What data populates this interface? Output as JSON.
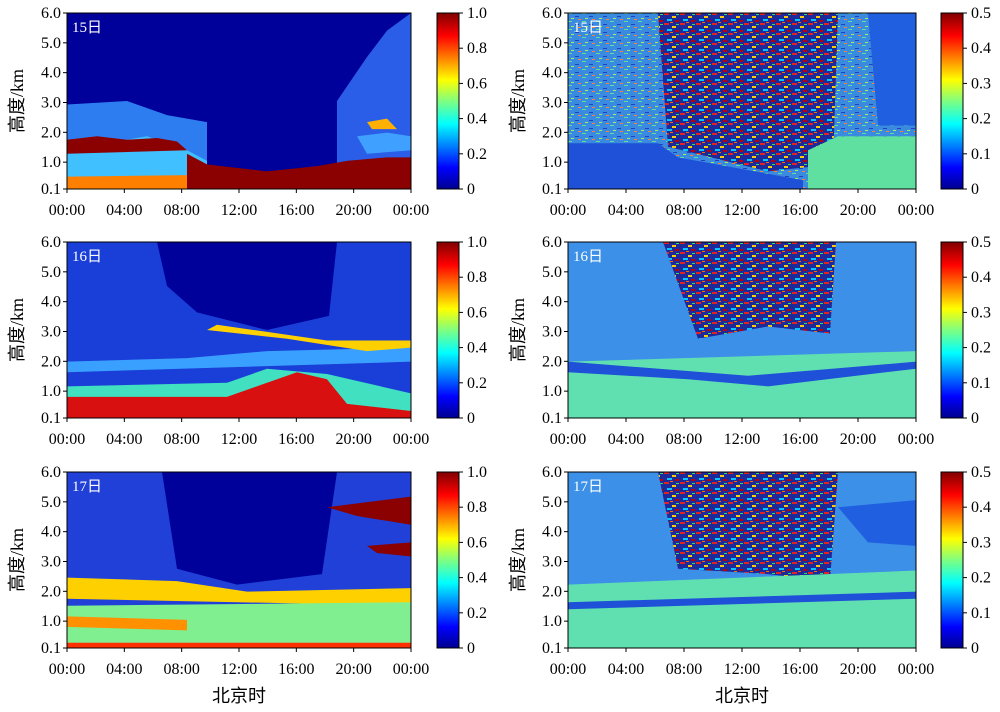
{
  "chart_data": [
    {
      "type": "heatmap",
      "panel": "left-top",
      "day_label": "15日",
      "ylabel": "高度/km",
      "xlabel": "",
      "x_ticks": [
        "00:00",
        "04:00",
        "08:00",
        "12:00",
        "16:00",
        "20:00",
        "00:00"
      ],
      "y_ticks": [
        "0.1",
        "1.0",
        "2.0",
        "3.0",
        "4.0",
        "5.0",
        "6.0"
      ],
      "ylim": [
        0.1,
        6.0
      ],
      "colorbar": {
        "min": 0,
        "max": 1.0,
        "ticks": [
          "0",
          "0.2",
          "0.4",
          "0.6",
          "0.8",
          "1.0"
        ]
      },
      "colormap": "jet"
    },
    {
      "type": "heatmap",
      "panel": "right-top",
      "day_label": "15日",
      "ylabel": "高度/km",
      "xlabel": "",
      "x_ticks": [
        "00:00",
        "04:00",
        "08:00",
        "12:00",
        "16:00",
        "20:00",
        "00:00"
      ],
      "y_ticks": [
        "0.1",
        "1.0",
        "2.0",
        "3.0",
        "4.0",
        "5.0",
        "6.0"
      ],
      "ylim": [
        0.1,
        6.0
      ],
      "colorbar": {
        "min": 0,
        "max": 0.5,
        "ticks": [
          "0",
          "0.1",
          "0.2",
          "0.3",
          "0.4",
          "0.5"
        ]
      },
      "colormap": "jet"
    },
    {
      "type": "heatmap",
      "panel": "left-middle",
      "day_label": "16日",
      "ylabel": "高度/km",
      "xlabel": "",
      "x_ticks": [
        "00:00",
        "04:00",
        "08:00",
        "12:00",
        "16:00",
        "20:00",
        "00:00"
      ],
      "y_ticks": [
        "0.1",
        "1.0",
        "2.0",
        "3.0",
        "4.0",
        "5.0",
        "6.0"
      ],
      "ylim": [
        0.1,
        6.0
      ],
      "colorbar": {
        "min": 0,
        "max": 1.0,
        "ticks": [
          "0",
          "0.2",
          "0.4",
          "0.6",
          "0.8",
          "1.0"
        ]
      },
      "colormap": "jet"
    },
    {
      "type": "heatmap",
      "panel": "right-middle",
      "day_label": "16日",
      "ylabel": "高度/km",
      "xlabel": "",
      "x_ticks": [
        "00:00",
        "04:00",
        "08:00",
        "12:00",
        "16:00",
        "20:00",
        "00:00"
      ],
      "y_ticks": [
        "0.1",
        "1.0",
        "2.0",
        "3.0",
        "4.0",
        "5.0",
        "6.0"
      ],
      "ylim": [
        0.1,
        6.0
      ],
      "colorbar": {
        "min": 0,
        "max": 0.5,
        "ticks": [
          "0",
          "0.1",
          "0.2",
          "0.3",
          "0.4",
          "0.5"
        ]
      },
      "colormap": "jet"
    },
    {
      "type": "heatmap",
      "panel": "left-bottom",
      "day_label": "17日",
      "ylabel": "高度/km",
      "xlabel": "北京时",
      "x_ticks": [
        "00:00",
        "04:00",
        "08:00",
        "12:00",
        "16:00",
        "20:00",
        "00:00"
      ],
      "y_ticks": [
        "0.1",
        "1.0",
        "2.0",
        "3.0",
        "4.0",
        "5.0",
        "6.0"
      ],
      "ylim": [
        0.1,
        6.0
      ],
      "colorbar": {
        "min": 0,
        "max": 1.0,
        "ticks": [
          "0",
          "0.2",
          "0.4",
          "0.6",
          "0.8",
          "1.0"
        ]
      },
      "colormap": "jet"
    },
    {
      "type": "heatmap",
      "panel": "right-bottom",
      "day_label": "17日",
      "ylabel": "高度/km",
      "xlabel": "北京时",
      "x_ticks": [
        "00:00",
        "04:00",
        "08:00",
        "12:00",
        "16:00",
        "20:00",
        "00:00"
      ],
      "y_ticks": [
        "0.1",
        "1.0",
        "2.0",
        "3.0",
        "4.0",
        "5.0",
        "6.0"
      ],
      "ylim": [
        0.1,
        6.0
      ],
      "colorbar": {
        "min": 0,
        "max": 0.5,
        "ticks": [
          "0",
          "0.1",
          "0.2",
          "0.3",
          "0.4",
          "0.5"
        ]
      },
      "colormap": "jet"
    }
  ]
}
